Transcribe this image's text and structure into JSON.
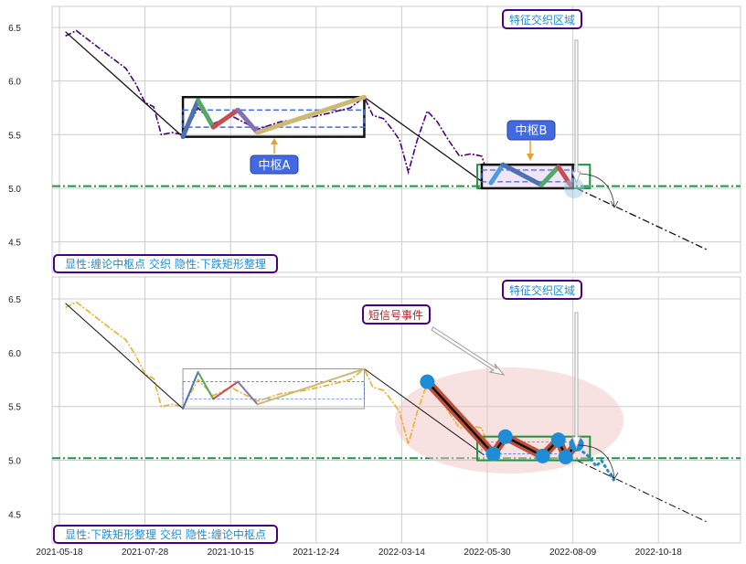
{
  "chart_data": [
    {
      "type": "line",
      "panel": "top",
      "x_ticks": [
        "2021-05-18",
        "2021-07-28",
        "2021-10-15",
        "2021-12-24",
        "2022-03-14",
        "2022-05-30",
        "2022-08-09",
        "2022-10-18"
      ],
      "y_ticks": [
        4.5,
        5.0,
        5.5,
        6.0,
        6.5
      ],
      "ylim": [
        4.25,
        6.7
      ],
      "grid": true,
      "price_color": "#4b0082",
      "price": [
        [
          "2021-05-23",
          6.42
        ],
        [
          "2021-06-01",
          6.47
        ],
        [
          "2021-06-15",
          6.35
        ],
        [
          "2021-06-30",
          6.22
        ],
        [
          "2021-07-12",
          6.12
        ],
        [
          "2021-07-20",
          5.98
        ],
        [
          "2021-07-28",
          5.8
        ],
        [
          "2021-08-05",
          5.76
        ],
        [
          "2021-08-12",
          5.5
        ],
        [
          "2021-08-22",
          5.52
        ],
        [
          "2021-09-01",
          5.5
        ],
        [
          "2021-09-08",
          5.62
        ],
        [
          "2021-09-15",
          5.75
        ],
        [
          "2021-09-29",
          5.6
        ],
        [
          "2021-10-15",
          5.68
        ],
        [
          "2021-10-25",
          5.62
        ],
        [
          "2021-11-06",
          5.55
        ],
        [
          "2021-11-25",
          5.62
        ],
        [
          "2021-12-15",
          5.65
        ],
        [
          "2022-01-05",
          5.7
        ],
        [
          "2022-01-25",
          5.75
        ],
        [
          "2022-02-07",
          5.85
        ],
        [
          "2022-02-15",
          5.68
        ],
        [
          "2022-02-25",
          5.65
        ],
        [
          "2022-03-05",
          5.55
        ],
        [
          "2022-03-12",
          5.45
        ],
        [
          "2022-03-20",
          5.15
        ],
        [
          "2022-03-28",
          5.45
        ],
        [
          "2022-04-06",
          5.72
        ],
        [
          "2022-04-15",
          5.62
        ],
        [
          "2022-04-25",
          5.45
        ],
        [
          "2022-05-05",
          5.3
        ],
        [
          "2022-05-15",
          5.32
        ],
        [
          "2022-05-25",
          5.3
        ],
        [
          "2022-06-02",
          5.05
        ],
        [
          "2022-06-12",
          5.22
        ],
        [
          "2022-06-25",
          5.15
        ],
        [
          "2022-07-14",
          5.04
        ],
        [
          "2022-07-28",
          5.2
        ],
        [
          "2022-08-05",
          5.03
        ],
        [
          "2022-08-12",
          5.12
        ]
      ],
      "trend_lines": [
        {
          "from": [
            "2021-05-23",
            6.46
          ],
          "to": [
            "2021-09-01",
            5.48
          ],
          "style": "solid"
        },
        {
          "from": [
            "2022-02-07",
            5.85
          ],
          "to": [
            "2022-05-27",
            5.05
          ],
          "style": "solid"
        },
        {
          "from": [
            "2022-08-12",
            5.0
          ],
          "to": [
            "2022-11-28",
            4.42
          ],
          "style": "dashdot"
        }
      ],
      "horizontal_line": {
        "value": 5.02,
        "color": "#1a9641"
      },
      "pivot_A": {
        "label": "中枢A",
        "box": [
          "2021-09-01",
          "2022-02-07",
          5.48,
          5.85
        ],
        "inner": [
          5.57,
          5.73
        ],
        "zigzag": [
          [
            "2021-09-01",
            5.48
          ],
          [
            "2021-09-15",
            5.82
          ],
          [
            "2021-09-29",
            5.57
          ],
          [
            "2021-10-21",
            5.73
          ],
          [
            "2021-11-06",
            5.52
          ],
          [
            "2022-02-07",
            5.85
          ]
        ],
        "zigzag_colors": [
          "#4c72b0",
          "#55a868",
          "#c44e52",
          "#8172b2",
          "#ccb974"
        ]
      },
      "pivot_B": {
        "label": "中枢B",
        "box": [
          "2022-05-25",
          "2022-08-09",
          5.0,
          5.22
        ],
        "green_box": [
          "2022-05-21",
          "2022-08-23",
          5.0,
          5.22
        ],
        "inner": [
          5.06,
          5.17
        ],
        "zigzag": [
          [
            "2022-06-02",
            5.05
          ],
          [
            "2022-06-12",
            5.22
          ],
          [
            "2022-07-14",
            5.03
          ],
          [
            "2022-07-28",
            5.2
          ],
          [
            "2022-08-07",
            5.03
          ]
        ],
        "zigzag_colors": [
          "#4c9be0",
          "#4c72b0",
          "#55a868",
          "#c44e52"
        ]
      },
      "feature_zone_label": "特征交织区域",
      "caption": "显性:缠论中枢点 交织 隐性:下跌矩形整理"
    },
    {
      "type": "line",
      "panel": "bottom",
      "x_ticks": [
        "2021-05-18",
        "2021-07-28",
        "2021-10-15",
        "2021-12-24",
        "2022-03-14",
        "2022-05-30",
        "2022-08-09",
        "2022-10-18"
      ],
      "y_ticks": [
        4.5,
        5.0,
        5.5,
        6.0,
        6.5
      ],
      "ylim": [
        4.25,
        6.7
      ],
      "grid": true,
      "price_color": "#e8b030",
      "signal_label": "短信号事件",
      "signal_points": [
        [
          "2022-04-06",
          5.73
        ],
        [
          "2022-06-04",
          5.06
        ],
        [
          "2022-06-14",
          5.22
        ],
        [
          "2022-07-15",
          5.04
        ],
        [
          "2022-07-28",
          5.19
        ],
        [
          "2022-08-03",
          5.03
        ],
        [
          "2022-08-12",
          5.15
        ]
      ],
      "signal_color": "#1f8dd6",
      "feature_zone_label": "特征交织区域",
      "caption": "显性:下跌矩形整理 交织 隐性:缠论中枢点"
    }
  ]
}
